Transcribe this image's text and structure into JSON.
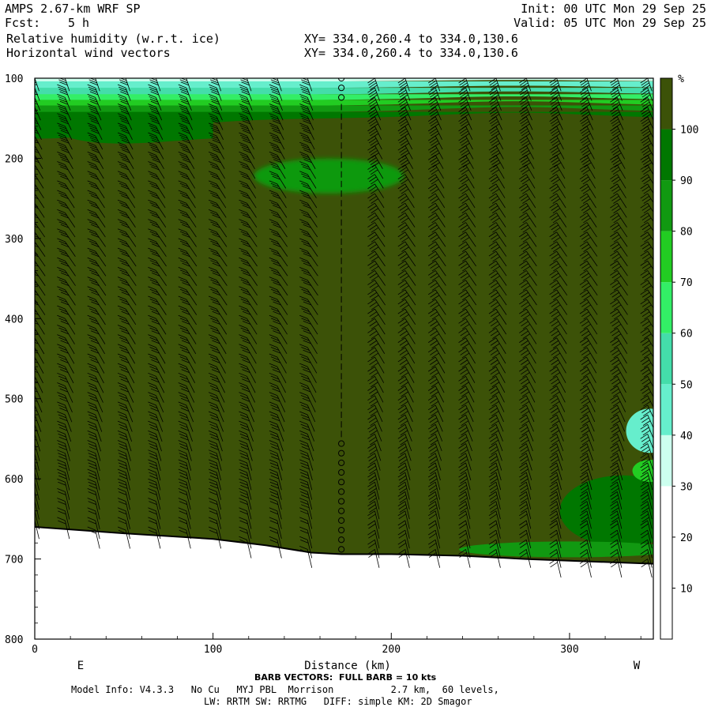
{
  "header": {
    "model": "AMPS 2.67-km WRF SP",
    "fcst_label": "Fcst:",
    "fcst_value": "5 h",
    "field1": "Relative humidity (w.r.t. ice)",
    "field2": "Horizontal wind vectors",
    "init": "Init: 00 UTC Mon 29 Sep 25",
    "valid": "Valid: 05 UTC Mon 29 Sep 25",
    "xy1": "XY= 334.0,260.4 to 334.0,130.6",
    "xy2": "XY= 334.0,260.4 to 334.0,130.6"
  },
  "footer": {
    "barb_note": "BARB VECTORS:  FULL BARB = 10 kts",
    "model_info": "Model Info: V4.3.3   No Cu   MYJ PBL  Morrison          2.7 km,  60 levels,",
    "physics": "LW: RRTM SW: RRTMG   DIFF: simple KM: 2D Smagor"
  },
  "chart_data": {
    "type": "heatmap",
    "title": "Relative humidity (w.r.t. ice)",
    "xlabel": "Distance (km)",
    "ylabel": "",
    "xlim": [
      0,
      347
    ],
    "ylim": [
      800,
      100
    ],
    "x_ticks": [
      0,
      100,
      200,
      300
    ],
    "x_tick_labels": [
      "0",
      "100",
      "200",
      "300"
    ],
    "y_ticks": [
      100,
      200,
      300,
      400,
      500,
      600,
      700,
      800
    ],
    "y_tick_labels": [
      "100",
      "200",
      "300",
      "400",
      "500",
      "600",
      "700",
      "800"
    ],
    "x_end_labels": {
      "left": "E",
      "right": "W"
    },
    "colorbar": {
      "unit": "%",
      "levels": [
        10,
        20,
        30,
        40,
        50,
        60,
        70,
        80,
        90,
        100
      ],
      "colors": [
        "#ffffff",
        "#ffffff",
        "#ffffff",
        "#ccffee",
        "#66eecc",
        "#44ddaa",
        "#33ee66",
        "#22cc22",
        "#119911",
        "#007700",
        "#3c5208"
      ]
    },
    "terrain_surface": [
      [
        0,
        660
      ],
      [
        50,
        668
      ],
      [
        100,
        675
      ],
      [
        130,
        683
      ],
      [
        155,
        692
      ],
      [
        172,
        694
      ],
      [
        200,
        694
      ],
      [
        240,
        696
      ],
      [
        275,
        700
      ],
      [
        310,
        703
      ],
      [
        347,
        706
      ]
    ],
    "rh_regions": [
      {
        "name": "top-dry-layer",
        "rh": 35,
        "x": [
          0,
          347
        ],
        "p": [
          100,
          130
        ]
      },
      {
        "name": "moist-upper",
        "rh": 85,
        "x": [
          135,
          210
        ],
        "p": [
          200,
          245
        ]
      },
      {
        "name": "near-saturated-bulk",
        "rh": 100,
        "x": [
          0,
          347
        ],
        "p": [
          140,
          706
        ]
      },
      {
        "name": "low-level-saturated",
        "rh": 95,
        "x": [
          285,
          347
        ],
        "p": [
          560,
          700
        ]
      },
      {
        "name": "east-dry-pocket",
        "rh": 45,
        "x": [
          330,
          347
        ],
        "p": [
          515,
          560
        ]
      }
    ],
    "barb_columns_km": [
      0,
      17,
      34,
      51,
      68,
      85,
      102,
      119,
      136,
      153,
      172,
      189,
      206,
      223,
      240,
      257,
      274,
      291,
      308,
      325,
      342
    ],
    "barb_spacing_hpa": 12,
    "calm_column_km": 172
  }
}
